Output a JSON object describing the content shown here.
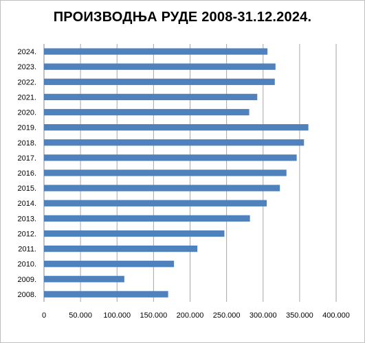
{
  "chart_data": {
    "type": "bar",
    "orientation": "horizontal",
    "title": "ПРОИЗВОДЊА РУДЕ 2008-31.12.2024.",
    "xlabel": "",
    "ylabel": "",
    "categories": [
      "2008.",
      "2009.",
      "2010.",
      "2011.",
      "2012.",
      "2013.",
      "2014.",
      "2015.",
      "2016.",
      "2017.",
      "2018.",
      "2019.",
      "2020.",
      "2021.",
      "2022.",
      "2023.",
      "2024."
    ],
    "values": [
      170000,
      110000,
      178000,
      210000,
      247000,
      282000,
      305000,
      323000,
      332000,
      346000,
      356000,
      362000,
      281000,
      292000,
      316000,
      317000,
      306000
    ],
    "xlim": [
      0,
      400000
    ],
    "xticks": [
      "0",
      "50.000",
      "100.000",
      "150.000",
      "200.000",
      "250.000",
      "300.000",
      "350.000",
      "400.000"
    ],
    "grid": true,
    "legend": "none",
    "bar_color": "#4f81bd",
    "grid_color": "#a6a6a6"
  }
}
